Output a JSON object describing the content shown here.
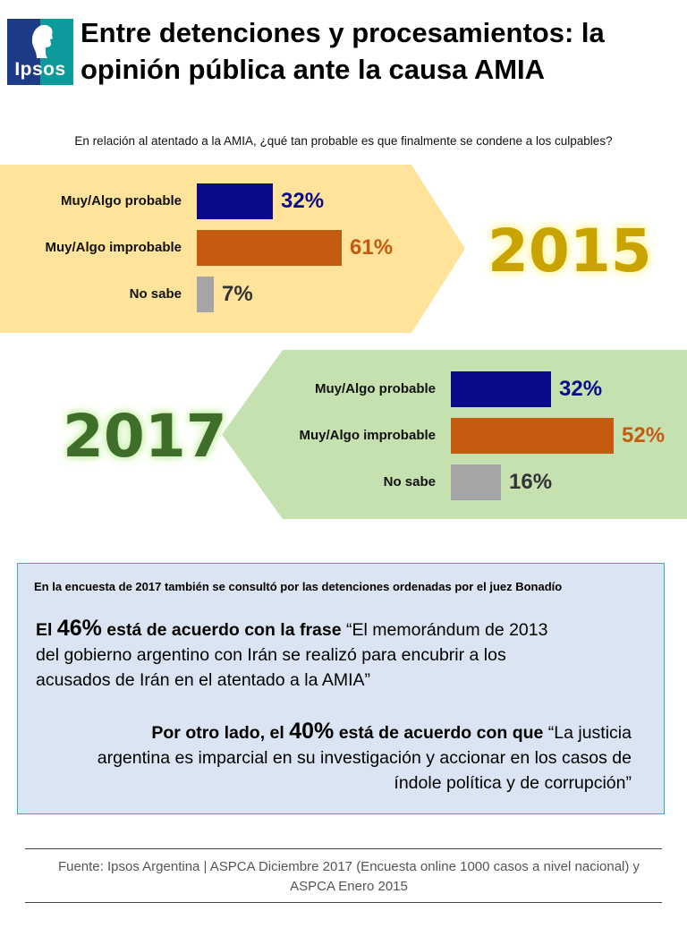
{
  "header": {
    "logo_text": "Ipsos",
    "title_line1": "Entre detenciones y procesamientos: la",
    "title_line2": "opinión pública ante la causa AMIA"
  },
  "question": "En relación al atentado a la AMIA, ¿qué tan probable es que finalmente se condene a los culpables?",
  "colors": {
    "probable": "#0b0a8a",
    "improbable": "#c55a11",
    "nosabe": "#a5a5a5",
    "panel_2015": "#ffe39a",
    "panel_2017": "#c6e1b0",
    "year_2015": "#c9a400",
    "year_2017": "#3f6e2a"
  },
  "chart_data": [
    {
      "type": "bar",
      "title": "2015",
      "categories": [
        "Muy/Algo probable",
        "Muy/Algo improbable",
        "No sabe"
      ],
      "values": [
        32,
        61,
        7
      ],
      "labels": [
        "32%",
        "61%",
        "7%"
      ],
      "unit": "%"
    },
    {
      "type": "bar",
      "title": "2017",
      "categories": [
        "Muy/Algo probable",
        "Muy/Algo improbable",
        "No sabe"
      ],
      "values": [
        32,
        52,
        16
      ],
      "labels": [
        "32%",
        "52%",
        "16%"
      ],
      "unit": "%"
    }
  ],
  "info": {
    "heading": "En la encuesta de 2017 también se consultó por las detenciones ordenadas por el juez Bonadío",
    "p1_pre": "El ",
    "p1_pct": "46%",
    "p1_bold": " está de acuerdo con la frase ",
    "p1_quote": "“El memorándum de 2013 del gobierno argentino con Irán se realizó para encubrir a los acusados de Irán en el atentado a la AMIA”",
    "p2_pre": "Por otro lado,  el ",
    "p2_pct": "40%",
    "p2_bold": " está de acuerdo con que ",
    "p2_quote": "“La justicia argentina es imparcial en su investigación y accionar en los casos de índole política y de corrupción”"
  },
  "footer": {
    "source": "Fuente: Ipsos Argentina | ASPCA Diciembre 2017 (Encuesta online 1000 casos a nivel nacional) y ASPCA Enero 2015"
  }
}
